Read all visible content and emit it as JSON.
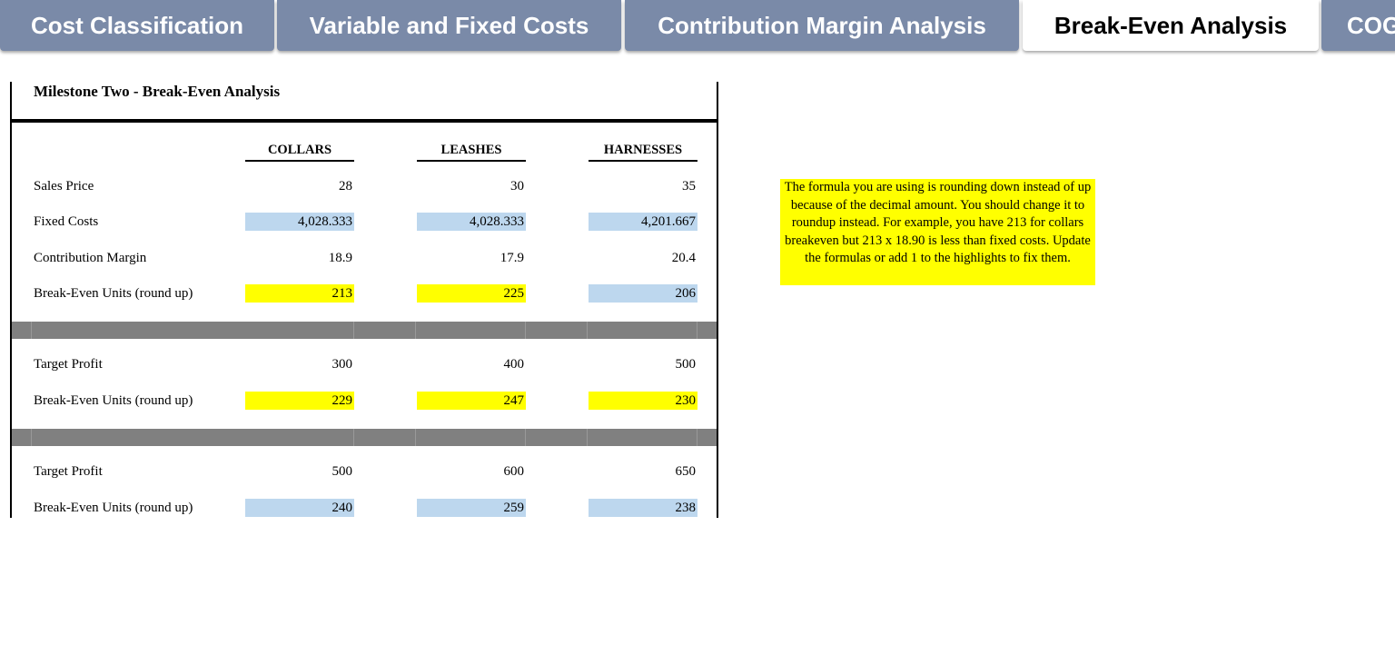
{
  "tabs": [
    "Cost Classification",
    "Variable and Fixed Costs",
    "Contribution Margin Analysis",
    "Break-Even Analysis",
    "COG"
  ],
  "sheet": {
    "title": "Milestone Two - Break-Even Analysis",
    "columns": [
      "COLLARS",
      "LEASHES",
      "HARNESSES"
    ],
    "sections": [
      {
        "rows": [
          {
            "label": "Sales Price",
            "values": [
              "28",
              "30",
              "35"
            ]
          },
          {
            "label": "Fixed Costs",
            "values": [
              "4,028.333",
              "4,028.333",
              "4,201.667"
            ]
          },
          {
            "label": "Contribution Margin",
            "values": [
              "18.9",
              "17.9",
              "20.4"
            ]
          },
          {
            "label": "Break-Even Units (round up)",
            "values": [
              "213",
              "225",
              "206"
            ]
          }
        ]
      },
      {
        "rows": [
          {
            "label": "Target Profit",
            "values": [
              "300",
              "400",
              "500"
            ]
          },
          {
            "label": "Break-Even Units (round up)",
            "values": [
              "229",
              "247",
              "230"
            ]
          }
        ]
      },
      {
        "rows": [
          {
            "label": "Target Profit",
            "values": [
              "500",
              "600",
              "650"
            ]
          },
          {
            "label": "Break-Even Units (round up)",
            "values": [
              "240",
              "259",
              "238"
            ]
          }
        ]
      }
    ]
  },
  "note": "The formula you are using is rounding down instead of up because of the decimal amount. You should change it to roundup instead. For example, you have 213 for collars breakeven but 213 x 18.90 is less than fixed costs. Update the formulas or add 1 to the highlights to fix them."
}
